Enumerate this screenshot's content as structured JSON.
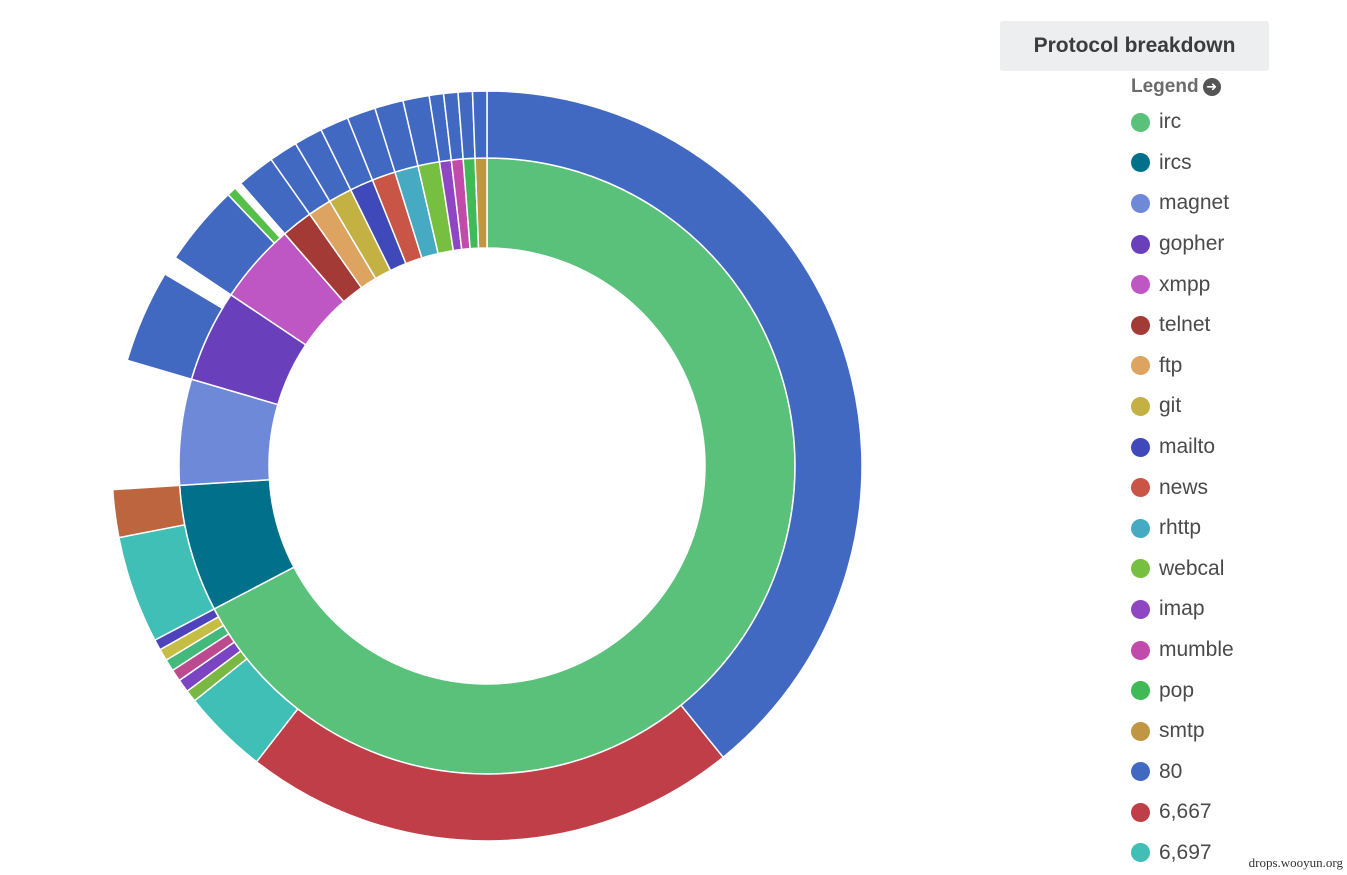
{
  "header": {
    "title": "Protocol breakdown",
    "legend_label": "Legend"
  },
  "watermark": "drops.wooyun.org",
  "chart_data": {
    "type": "sunburst",
    "title": "Protocol breakdown",
    "inner_ring": [
      {
        "name": "irc",
        "value": 65.5,
        "color": "#5ac17a"
      },
      {
        "name": "ircs",
        "value": 6.5,
        "color": "#00708b"
      },
      {
        "name": "magnet",
        "value": 5.4,
        "color": "#6f89d9"
      },
      {
        "name": "gopher",
        "value": 4.7,
        "color": "#6a3fbc"
      },
      {
        "name": "xmpp",
        "value": 4.1,
        "color": "#be57c4"
      },
      {
        "name": "telnet",
        "value": 1.6,
        "color": "#a33a35"
      },
      {
        "name": "ftp",
        "value": 1.2,
        "color": "#dca361"
      },
      {
        "name": "git",
        "value": 1.2,
        "color": "#c4b144"
      },
      {
        "name": "mailto",
        "value": 1.2,
        "color": "#4049b9"
      },
      {
        "name": "news",
        "value": 1.2,
        "color": "#c95546"
      },
      {
        "name": "rhttp",
        "value": 1.2,
        "color": "#46abc2"
      },
      {
        "name": "webcal",
        "value": 1.1,
        "color": "#77bf41"
      },
      {
        "name": "imap",
        "value": 0.6,
        "color": "#8e46c2"
      },
      {
        "name": "mumble",
        "value": 0.6,
        "color": "#c24aaa"
      },
      {
        "name": "pop",
        "value": 0.6,
        "color": "#3fba57"
      },
      {
        "name": "smtp",
        "value": 0.6,
        "color": "#c09642"
      }
    ],
    "outer_ring": [
      {
        "parent": "irc",
        "name": "80",
        "value": 38.1,
        "color": "#4269c1"
      },
      {
        "parent": "irc",
        "name": "6,667",
        "value": 20.8,
        "color": "#c03e47"
      },
      {
        "parent": "irc",
        "name": "6,697",
        "value": 3.6,
        "color": "#3fbfb5"
      },
      {
        "parent": "irc",
        "name": "",
        "value": 0.5,
        "color": "#7ab844"
      },
      {
        "parent": "irc",
        "name": "",
        "value": 0.55,
        "color": "#7b44c2"
      },
      {
        "parent": "irc",
        "name": "",
        "value": 0.5,
        "color": "#bc4a8f"
      },
      {
        "parent": "irc",
        "name": "",
        "value": 0.5,
        "color": "#44b97c"
      },
      {
        "parent": "irc",
        "name": "",
        "value": 0.5,
        "color": "#c6bd45"
      },
      {
        "parent": "irc",
        "name": "",
        "value": 0.45,
        "color": "#4d44bb"
      },
      {
        "parent": "ircs",
        "name": "",
        "value": 4.5,
        "color": "#3fbfb5"
      },
      {
        "parent": "ircs",
        "name": "",
        "value": 4.5,
        "color": "#bd653f"
      },
      {
        "parent": "ircs",
        "name": "",
        "value": 0.3,
        "color": "#44b970"
      },
      {
        "parent": "ircs",
        "name": "",
        "value": 0.5,
        "color": "#3c9ac3"
      },
      {
        "parent": "magnet",
        "name": "",
        "value": 0.0,
        "color": "#4269c1"
      },
      {
        "parent": "gopher",
        "name": "",
        "value": 3.9,
        "color": "#4269c1"
      },
      {
        "parent": "xmpp",
        "name": "",
        "value": 3.4,
        "color": "#4269c1"
      },
      {
        "parent": "xmpp",
        "name": "",
        "value": 0.4,
        "color": "#56bf4a"
      },
      {
        "parent": "telnet",
        "name": "",
        "value": 1.9,
        "color": "#4269c1"
      },
      {
        "parent": "ftp",
        "name": "",
        "value": 1.4,
        "color": "#4269c1"
      },
      {
        "parent": "git",
        "name": "",
        "value": 1.4,
        "color": "#4269c1"
      },
      {
        "parent": "mailto",
        "name": "",
        "value": 1.4,
        "color": "#4269c1"
      },
      {
        "parent": "news",
        "name": "",
        "value": 1.4,
        "color": "#4269c1"
      },
      {
        "parent": "rhttp",
        "name": "",
        "value": 1.4,
        "color": "#4269c1"
      },
      {
        "parent": "webcal",
        "name": "",
        "value": 1.4,
        "color": "#4269c1"
      },
      {
        "parent": "imap",
        "name": "",
        "value": 0.6,
        "color": "#4269c1"
      },
      {
        "parent": "mumble",
        "name": "",
        "value": 0.6,
        "color": "#4269c1"
      },
      {
        "parent": "pop",
        "name": "",
        "value": 0.6,
        "color": "#4269c1"
      },
      {
        "parent": "smtp",
        "name": "",
        "value": 0.6,
        "color": "#4269c1"
      }
    ],
    "legend": [
      {
        "label": "irc",
        "color": "#5ac17a"
      },
      {
        "label": "ircs",
        "color": "#00708b"
      },
      {
        "label": "magnet",
        "color": "#6f89d9"
      },
      {
        "label": "gopher",
        "color": "#6a3fbc"
      },
      {
        "label": "xmpp",
        "color": "#be57c4"
      },
      {
        "label": "telnet",
        "color": "#a33a35"
      },
      {
        "label": "ftp",
        "color": "#dca361"
      },
      {
        "label": "git",
        "color": "#c4b144"
      },
      {
        "label": "mailto",
        "color": "#4049b9"
      },
      {
        "label": "news",
        "color": "#c95546"
      },
      {
        "label": "rhttp",
        "color": "#46abc2"
      },
      {
        "label": "webcal",
        "color": "#77bf41"
      },
      {
        "label": "imap",
        "color": "#8e46c2"
      },
      {
        "label": "mumble",
        "color": "#c24aaa"
      },
      {
        "label": "pop",
        "color": "#3fba57"
      },
      {
        "label": "smtp",
        "color": "#c09642"
      },
      {
        "label": "80",
        "color": "#4269c1"
      },
      {
        "label": "6,667",
        "color": "#c03e47"
      },
      {
        "label": "6,697",
        "color": "#3fbfb5"
      }
    ],
    "legend_placement": "right"
  }
}
